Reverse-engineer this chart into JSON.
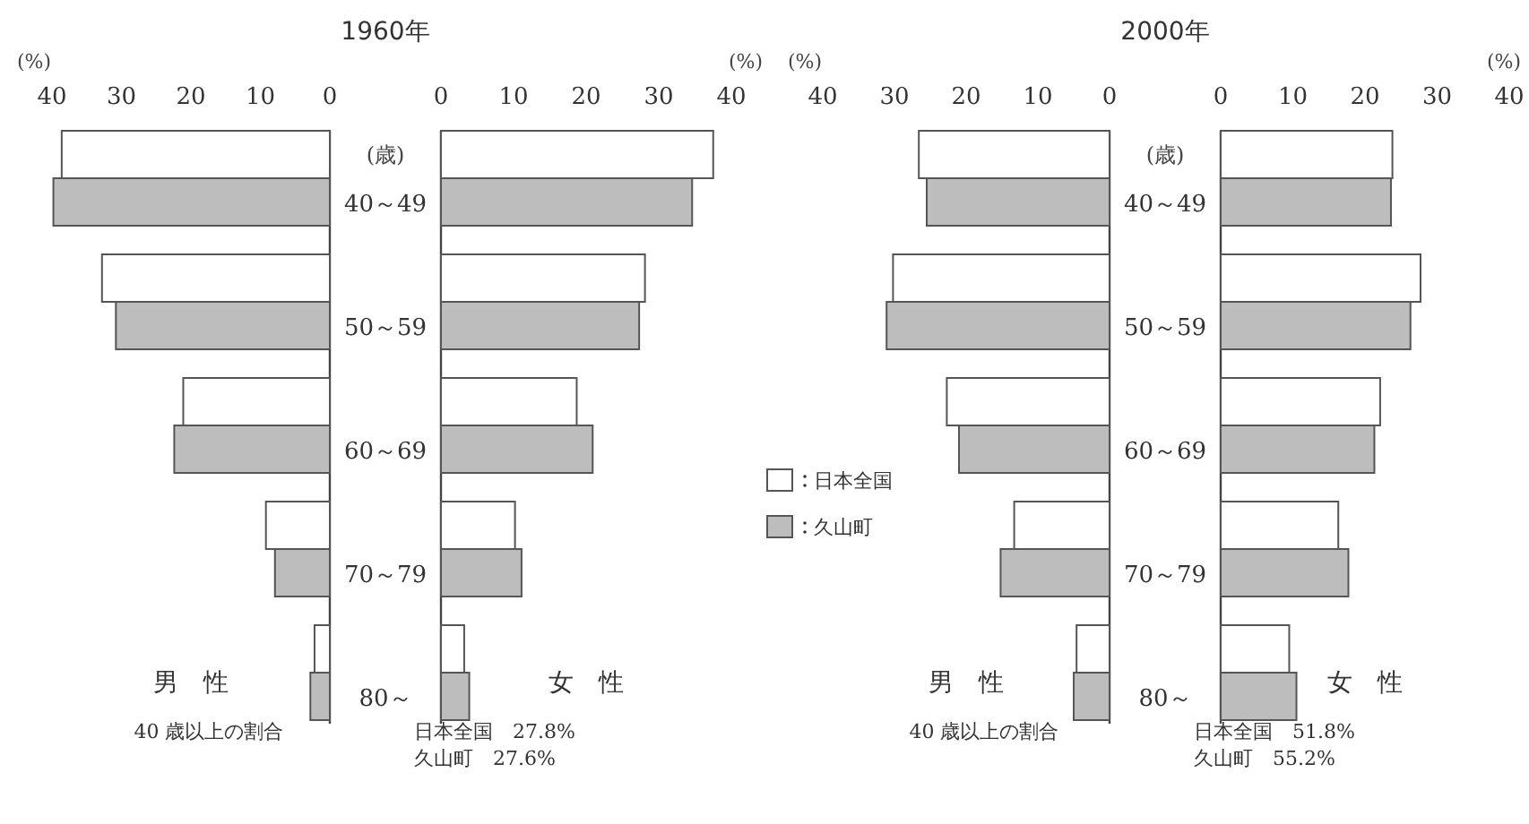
{
  "chart_data": [
    {
      "type": "bar",
      "orientation": "horizontal",
      "title": "1960年",
      "xlabel": "(%)",
      "ylabel": "(歳)",
      "categories": [
        "40～49",
        "50～59",
        "60～69",
        "70～79",
        "80～"
      ],
      "series": [
        {
          "color": "#ffffff",
          "values": [
            38.6,
            32.8,
            21.1,
            9.2,
            2.2
          ]
        },
        {
          "color": "#bdbdbd",
          "values": [
            39.8,
            30.8,
            22.4,
            7.9,
            2.8
          ]
        }
      ],
      "xlim": [
        40,
        0
      ],
      "xticks": [
        40,
        30,
        20,
        10,
        0
      ],
      "annotations": [
        "男　性",
        "40 歳以上の割合"
      ]
    },
    {
      "type": "bar",
      "orientation": "horizontal",
      "xlabel": "(%)",
      "categories": [
        null,
        null,
        null,
        null,
        null
      ],
      "series": [
        {
          "name": "日本全国",
          "color": "#ffffff",
          "values": [
            37.5,
            28.1,
            18.7,
            10.2,
            3.2
          ]
        },
        {
          "name": "久山町",
          "color": "#bdbdbd",
          "values": [
            34.6,
            27.3,
            20.9,
            11.1,
            3.9
          ]
        }
      ],
      "xlim": [
        0,
        40
      ],
      "xticks": [
        0,
        10,
        20,
        30,
        40
      ],
      "tick_labels": "x",
      "legend": "right",
      "annotations": [
        "女　性",
        "日本全国　27.8%",
        "久山町　27.6%"
      ]
    },
    {
      "type": "bar",
      "orientation": "horizontal",
      "title": "2000年",
      "xlabel": "(%)",
      "ylabel": "(歳)",
      "categories": [
        "40～49",
        "50～59",
        "60～69",
        "70～79",
        "80～"
      ],
      "series": [
        {
          "color": "#ffffff",
          "values": [
            26.6,
            30.2,
            22.7,
            13.3,
            4.6
          ]
        },
        {
          "color": "#bdbdbd",
          "values": [
            25.5,
            31.1,
            21.0,
            15.2,
            5.0
          ]
        }
      ],
      "xlim": [
        40,
        0
      ],
      "xticks": [
        40,
        30,
        20,
        10,
        0
      ],
      "annotations": [
        "男　性",
        "40 歳以上の割合"
      ]
    },
    {
      "type": "bar",
      "orientation": "horizontal",
      "xlabel": "(%)",
      "categories": [
        null,
        null,
        null,
        null,
        null
      ],
      "series": [
        {
          "color": "#ffffff",
          "values": [
            23.8,
            27.7,
            22.1,
            16.3,
            9.5
          ]
        },
        {
          "color": "#bdbdbd",
          "values": [
            23.6,
            26.3,
            21.3,
            17.7,
            10.5
          ]
        }
      ],
      "xlim": [
        0,
        40
      ],
      "xticks": [
        0,
        10,
        20,
        30,
        40
      ],
      "tick_labels": "x",
      "annotations": [
        "女　性",
        "日本全国　51.8%",
        "久山町　55.2%"
      ]
    }
  ]
}
